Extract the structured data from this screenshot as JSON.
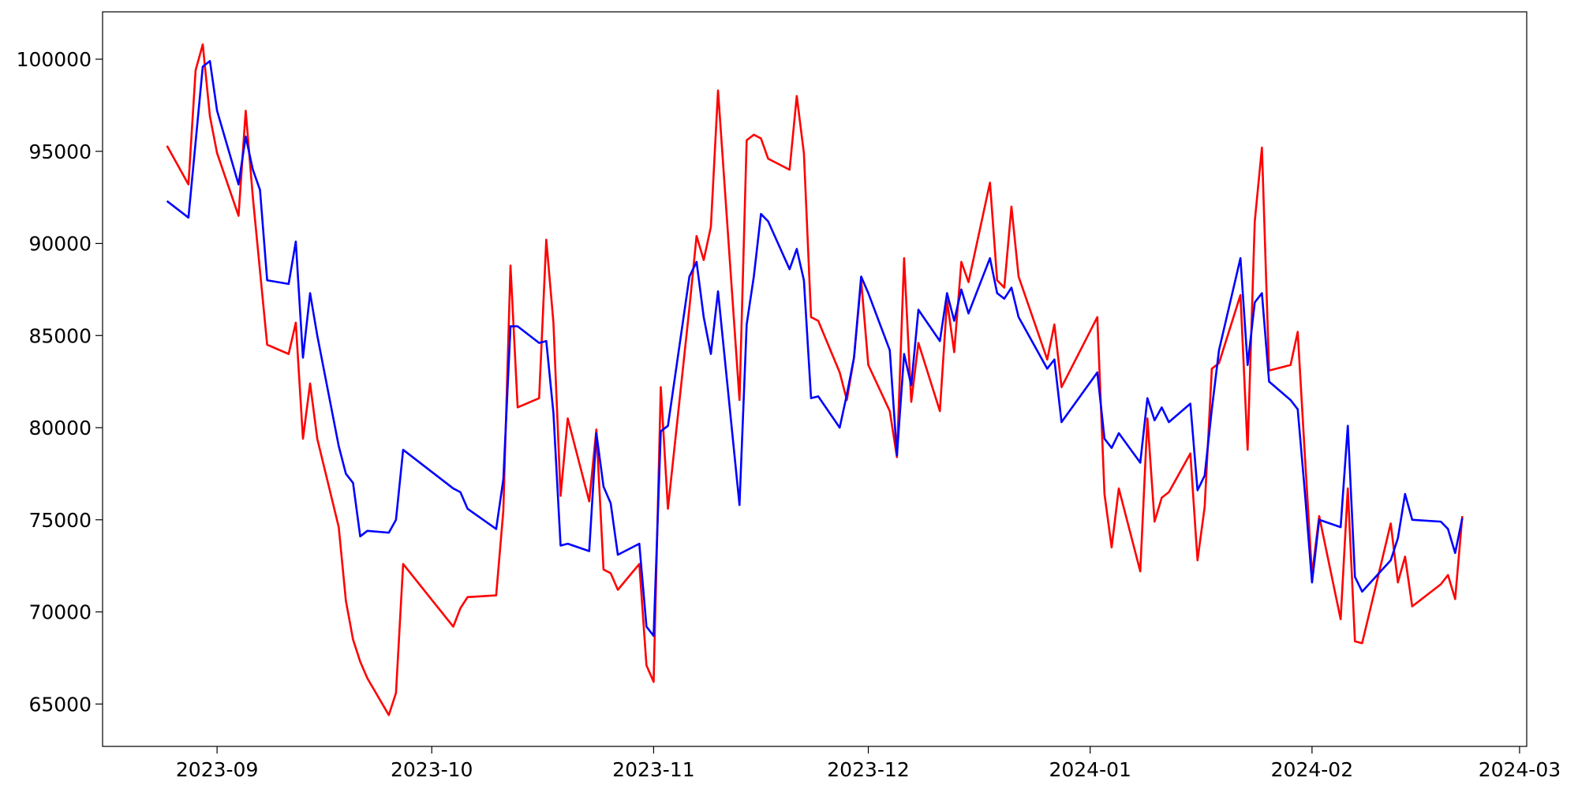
{
  "chart_data": {
    "type": "line",
    "x": [
      "2023-08-25",
      "2023-08-28",
      "2023-08-29",
      "2023-08-30",
      "2023-08-31",
      "2023-09-01",
      "2023-09-04",
      "2023-09-05",
      "2023-09-06",
      "2023-09-07",
      "2023-09-08",
      "2023-09-11",
      "2023-09-12",
      "2023-09-13",
      "2023-09-14",
      "2023-09-15",
      "2023-09-18",
      "2023-09-19",
      "2023-09-20",
      "2023-09-21",
      "2023-09-22",
      "2023-09-25",
      "2023-09-26",
      "2023-09-27",
      "2023-10-04",
      "2023-10-05",
      "2023-10-06",
      "2023-10-10",
      "2023-10-11",
      "2023-10-12",
      "2023-10-13",
      "2023-10-16",
      "2023-10-17",
      "2023-10-18",
      "2023-10-19",
      "2023-10-20",
      "2023-10-23",
      "2023-10-24",
      "2023-10-25",
      "2023-10-26",
      "2023-10-27",
      "2023-10-30",
      "2023-10-31",
      "2023-11-01",
      "2023-11-02",
      "2023-11-03",
      "2023-11-06",
      "2023-11-07",
      "2023-11-08",
      "2023-11-09",
      "2023-11-10",
      "2023-11-13",
      "2023-11-14",
      "2023-11-15",
      "2023-11-16",
      "2023-11-17",
      "2023-11-20",
      "2023-11-21",
      "2023-11-22",
      "2023-11-23",
      "2023-11-24",
      "2023-11-27",
      "2023-11-28",
      "2023-11-29",
      "2023-11-30",
      "2023-12-01",
      "2023-12-04",
      "2023-12-05",
      "2023-12-06",
      "2023-12-07",
      "2023-12-08",
      "2023-12-11",
      "2023-12-12",
      "2023-12-13",
      "2023-12-14",
      "2023-12-15",
      "2023-12-18",
      "2023-12-19",
      "2023-12-20",
      "2023-12-21",
      "2023-12-22",
      "2023-12-26",
      "2023-12-27",
      "2023-12-28",
      "2024-01-02",
      "2024-01-03",
      "2024-01-04",
      "2024-01-05",
      "2024-01-08",
      "2024-01-09",
      "2024-01-10",
      "2024-01-11",
      "2024-01-12",
      "2024-01-15",
      "2024-01-16",
      "2024-01-17",
      "2024-01-18",
      "2024-01-19",
      "2024-01-22",
      "2024-01-23",
      "2024-01-24",
      "2024-01-25",
      "2024-01-26",
      "2024-01-29",
      "2024-01-30",
      "2024-01-31",
      "2024-02-01",
      "2024-02-02",
      "2024-02-05",
      "2024-02-06",
      "2024-02-07",
      "2024-02-08",
      "2024-02-12",
      "2024-02-13",
      "2024-02-14",
      "2024-02-15",
      "2024-02-19",
      "2024-02-20",
      "2024-02-21",
      "2024-02-22"
    ],
    "series": [
      {
        "color": "red",
        "values": [
          95300,
          93200,
          99400,
          100800,
          96900,
          94900,
          91500,
          97200,
          92500,
          88500,
          84500,
          84000,
          85700,
          79400,
          82400,
          79400,
          74600,
          70600,
          68500,
          67300,
          66400,
          64400,
          65600,
          72600,
          69200,
          70200,
          70800,
          70900,
          75500,
          88800,
          81100,
          81600,
          90200,
          85700,
          76300,
          80500,
          76000,
          79900,
          72300,
          72100,
          71200,
          72600,
          67100,
          66200,
          82200,
          75600,
          86500,
          90400,
          89100,
          90900,
          98300,
          81500,
          95600,
          95900,
          95700,
          94600,
          94000,
          98000,
          94900,
          86000,
          85800,
          83000,
          81500,
          83800,
          88000,
          83400,
          80900,
          78400,
          89200,
          81400,
          84600,
          80900,
          86900,
          84100,
          89000,
          87900,
          93300,
          88000,
          87600,
          92000,
          88200,
          83700,
          85600,
          82200,
          86000,
          76400,
          73500,
          76700,
          72200,
          80500,
          74900,
          76200,
          76500,
          78600,
          72800,
          75700,
          83200,
          83500,
          87200,
          78800,
          91200,
          95200,
          83100,
          83400,
          85200,
          78500,
          72000,
          75200,
          69600,
          76700,
          68400,
          68300,
          74800,
          71600,
          73000,
          70300,
          71500,
          72000,
          70700,
          75200
        ]
      },
      {
        "color": "blue",
        "values": [
          92300,
          91400,
          95500,
          99600,
          99900,
          97200,
          93200,
          95800,
          94000,
          92900,
          88000,
          87800,
          90100,
          83800,
          87300,
          85000,
          79000,
          77500,
          77000,
          74100,
          74400,
          74300,
          75000,
          78800,
          76700,
          76500,
          75600,
          74500,
          77200,
          85500,
          85500,
          84600,
          84700,
          80800,
          73600,
          73700,
          73300,
          79700,
          76800,
          75900,
          73100,
          73700,
          69200,
          68700,
          79800,
          80100,
          88200,
          89000,
          86000,
          84000,
          87400,
          75800,
          85600,
          88200,
          91600,
          91200,
          88600,
          89700,
          88000,
          81600,
          81700,
          80000,
          81800,
          83800,
          88200,
          87300,
          84200,
          78500,
          84000,
          82300,
          86400,
          84700,
          87300,
          85800,
          87500,
          86200,
          89200,
          87300,
          87000,
          87600,
          86000,
          83200,
          83700,
          80300,
          83000,
          79400,
          78900,
          79700,
          78100,
          81600,
          80400,
          81100,
          80300,
          81300,
          76600,
          77400,
          81000,
          84200,
          89200,
          83400,
          86800,
          87300,
          82500,
          81500,
          81000,
          76500,
          71600,
          75000,
          74600,
          80100,
          71900,
          71100,
          72800,
          74000,
          76400,
          75000,
          74900,
          74500,
          73200,
          75100
        ]
      }
    ],
    "xlim": [
      "2023-08-16",
      "2024-03-02"
    ],
    "xticks": [
      {
        "value": "2023-09-01",
        "label": "2023-09"
      },
      {
        "value": "2023-10-01",
        "label": "2023-10"
      },
      {
        "value": "2023-11-01",
        "label": "2023-11"
      },
      {
        "value": "2023-12-01",
        "label": "2023-12"
      },
      {
        "value": "2024-01-01",
        "label": "2024-01"
      },
      {
        "value": "2024-02-01",
        "label": "2024-02"
      },
      {
        "value": "2024-03-01",
        "label": "2024-03"
      }
    ],
    "ylim": [
      62700,
      102570
    ],
    "yticks": [
      65000,
      70000,
      75000,
      80000,
      85000,
      90000,
      95000,
      100000
    ]
  }
}
